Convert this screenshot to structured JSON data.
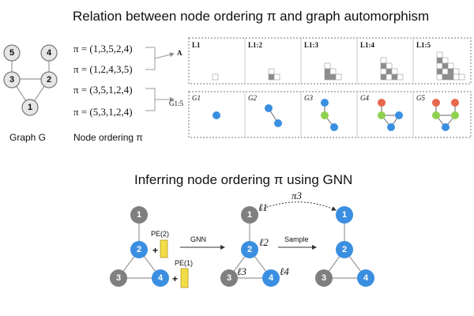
{
  "top": {
    "title": "Relation between node ordering π and graph automorphism",
    "graph_caption": "Graph G",
    "ordering_caption": "Node ordering π",
    "graph_nodes": [
      "5",
      "4",
      "3",
      "2",
      "1"
    ],
    "orderings": [
      "π = (1,3,5,2,4)",
      "π = (1,2,4,3,5)",
      "π = (3,5,1,2,4)",
      "π = (5,3,1,2,4)"
    ],
    "adj_label": "A",
    "graph_seq_label": "G1:5",
    "matrix_panels": [
      "L1",
      "L1:2",
      "L1:3",
      "L1:4",
      "L1:5"
    ],
    "graph_panels": [
      "G1",
      "G2",
      "G3",
      "G4",
      "G5"
    ]
  },
  "bottom": {
    "title": "Inferring node ordering π using GNN",
    "pe2": "PE(2)",
    "pe1": "PE(1)",
    "plus": "+",
    "gnn": "GNN",
    "sample": "Sample",
    "pi3": "π3",
    "ell": [
      "ℓ1",
      "ℓ2",
      "ℓ3",
      "ℓ4"
    ],
    "nodes": [
      "1",
      "2",
      "3",
      "4"
    ]
  },
  "colors": {
    "blue": "#3b8fe0",
    "gray": "#7f7f7f",
    "green": "#8fd14f",
    "red": "#e8674f",
    "yellow": "#f3dc4a",
    "cell_dark": "#8c8c8c"
  }
}
